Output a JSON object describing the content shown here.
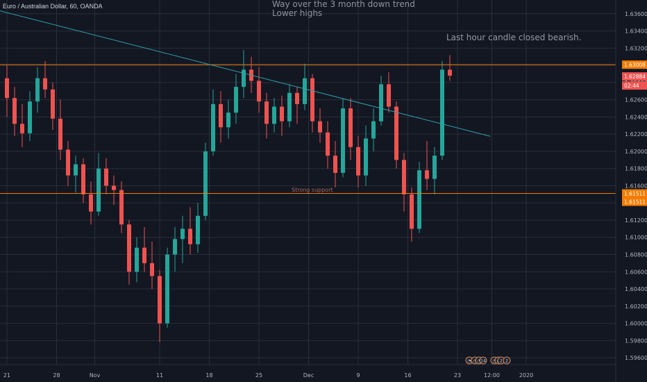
{
  "header": {
    "symbol": "Euro / Australian Dollar, 60, OANDA"
  },
  "annotations": {
    "trend_note_line1": "Way over the 3 month down trend",
    "trend_note_line2": "Lower highs",
    "candle_note": "Last hour candle closed bearish.",
    "support_label": "Strong support"
  },
  "price_tags": {
    "resistance": "1.63008",
    "current": "1.62884",
    "countdown": "02:44",
    "support_a": "1.61511",
    "support_b": "1.61511"
  },
  "event_badges": [
    {
      "glyph": "◔"
    },
    {
      "glyph": "◔"
    },
    {
      "glyph": "◔"
    },
    {
      "glyph": "14"
    },
    {
      "glyph": "◔"
    },
    {
      "glyph": "◔"
    },
    {
      "glyph": "2"
    },
    {
      "glyph": "2"
    }
  ],
  "colors": {
    "background": "#131722",
    "grid": "#2a2e39",
    "up": "#26a69a",
    "down": "#ef5350",
    "resistance": "#f57c00",
    "support": "#f57c00",
    "trendline": "#2ea1ad",
    "current_tag": "#ef5350",
    "support_tag": "#f57c00"
  },
  "chart_data": {
    "type": "candlestick",
    "title": "",
    "xlabel": "",
    "ylabel": "",
    "ylim": [
      1.5952,
      1.6376
    ],
    "grid": true,
    "y_ticks": [
      "1.59600",
      "1.59800",
      "1.60000",
      "1.60200",
      "1.60400",
      "1.60600",
      "1.60800",
      "1.61000",
      "1.61200",
      "1.61400",
      "1.61600",
      "1.61800",
      "1.62000",
      "1.62200",
      "1.62400",
      "1.62600",
      "1.62800",
      "1.63000",
      "1.63200",
      "1.63400",
      "1.63600"
    ],
    "x_ticks": [
      {
        "label": "21",
        "index": 0
      },
      {
        "label": "28",
        "index": 6.5
      },
      {
        "label": "Nov",
        "index": 11.5
      },
      {
        "label": "11",
        "index": 20
      },
      {
        "label": "18",
        "index": 26.5
      },
      {
        "label": "25",
        "index": 33
      },
      {
        "label": "Dec",
        "index": 39.5
      },
      {
        "label": "9",
        "index": 46
      },
      {
        "label": "16",
        "index": 52.5
      },
      {
        "label": "23",
        "index": 59
      },
      {
        "label": "12:00",
        "index": 63.5
      },
      {
        "label": "2020",
        "index": 68
      }
    ],
    "resistance": 1.63008,
    "support": 1.61511,
    "trendline": [
      [
        -10,
        1.6384
      ],
      [
        63.3,
        1.62175
      ]
    ],
    "candles": [
      {
        "t": "21",
        "o": 1.6285,
        "h": 1.63,
        "l": 1.624,
        "c": 1.6262
      },
      {
        "t": "21",
        "o": 1.6262,
        "h": 1.6275,
        "l": 1.6218,
        "c": 1.6232
      },
      {
        "t": "22",
        "o": 1.6232,
        "h": 1.6255,
        "l": 1.6205,
        "c": 1.6221
      },
      {
        "t": "22",
        "o": 1.6221,
        "h": 1.627,
        "l": 1.6212,
        "c": 1.6258
      },
      {
        "t": "23",
        "o": 1.6258,
        "h": 1.6298,
        "l": 1.6245,
        "c": 1.6285
      },
      {
        "t": "24",
        "o": 1.6285,
        "h": 1.6305,
        "l": 1.6262,
        "c": 1.6272
      },
      {
        "t": "25",
        "o": 1.6272,
        "h": 1.628,
        "l": 1.6225,
        "c": 1.6238
      },
      {
        "t": "28",
        "o": 1.6238,
        "h": 1.626,
        "l": 1.619,
        "c": 1.6202
      },
      {
        "t": "28",
        "o": 1.6202,
        "h": 1.6212,
        "l": 1.616,
        "c": 1.6172
      },
      {
        "t": "29",
        "o": 1.6172,
        "h": 1.6195,
        "l": 1.6152,
        "c": 1.6185
      },
      {
        "t": "30",
        "o": 1.6185,
        "h": 1.6192,
        "l": 1.614,
        "c": 1.615
      },
      {
        "t": "31",
        "o": 1.615,
        "h": 1.6165,
        "l": 1.6115,
        "c": 1.613
      },
      {
        "t": "1",
        "o": 1.613,
        "h": 1.6198,
        "l": 1.6125,
        "c": 1.618
      },
      {
        "t": "4",
        "o": 1.618,
        "h": 1.6192,
        "l": 1.615,
        "c": 1.616
      },
      {
        "t": "4",
        "o": 1.616,
        "h": 1.6172,
        "l": 1.6138,
        "c": 1.6155
      },
      {
        "t": "5",
        "o": 1.6155,
        "h": 1.6165,
        "l": 1.6105,
        "c": 1.6115
      },
      {
        "t": "6",
        "o": 1.6115,
        "h": 1.612,
        "l": 1.6045,
        "c": 1.606
      },
      {
        "t": "7",
        "o": 1.606,
        "h": 1.61,
        "l": 1.6048,
        "c": 1.6088
      },
      {
        "t": "7",
        "o": 1.6088,
        "h": 1.6112,
        "l": 1.606,
        "c": 1.607
      },
      {
        "t": "8",
        "o": 1.607,
        "h": 1.6095,
        "l": 1.604,
        "c": 1.6055
      },
      {
        "t": "8",
        "o": 1.6055,
        "h": 1.6062,
        "l": 1.5978,
        "c": 1.6
      },
      {
        "t": "11",
        "o": 1.6,
        "h": 1.6088,
        "l": 1.5995,
        "c": 1.608
      },
      {
        "t": "12",
        "o": 1.608,
        "h": 1.6112,
        "l": 1.606,
        "c": 1.6098
      },
      {
        "t": "13",
        "o": 1.6098,
        "h": 1.6125,
        "l": 1.607,
        "c": 1.611
      },
      {
        "t": "14",
        "o": 1.611,
        "h": 1.6135,
        "l": 1.608,
        "c": 1.6092
      },
      {
        "t": "15",
        "o": 1.6092,
        "h": 1.614,
        "l": 1.6082,
        "c": 1.6125
      },
      {
        "t": "15",
        "o": 1.6125,
        "h": 1.621,
        "l": 1.612,
        "c": 1.62
      },
      {
        "t": "18",
        "o": 1.62,
        "h": 1.6272,
        "l": 1.6195,
        "c": 1.6255
      },
      {
        "t": "18",
        "o": 1.6255,
        "h": 1.627,
        "l": 1.621,
        "c": 1.6228
      },
      {
        "t": "19",
        "o": 1.6228,
        "h": 1.626,
        "l": 1.6215,
        "c": 1.6245
      },
      {
        "t": "20",
        "o": 1.6245,
        "h": 1.629,
        "l": 1.6232,
        "c": 1.6275
      },
      {
        "t": "21",
        "o": 1.6275,
        "h": 1.6318,
        "l": 1.6262,
        "c": 1.6295
      },
      {
        "t": "22",
        "o": 1.6295,
        "h": 1.631,
        "l": 1.6268,
        "c": 1.6282
      },
      {
        "t": "22",
        "o": 1.6282,
        "h": 1.6298,
        "l": 1.6245,
        "c": 1.6258
      },
      {
        "t": "25",
        "o": 1.6258,
        "h": 1.6268,
        "l": 1.6215,
        "c": 1.6232
      },
      {
        "t": "25",
        "o": 1.6232,
        "h": 1.6262,
        "l": 1.6222,
        "c": 1.6252
      },
      {
        "t": "26",
        "o": 1.6252,
        "h": 1.6265,
        "l": 1.6218,
        "c": 1.6235
      },
      {
        "t": "27",
        "o": 1.6235,
        "h": 1.6278,
        "l": 1.6228,
        "c": 1.6268
      },
      {
        "t": "28",
        "o": 1.6268,
        "h": 1.6275,
        "l": 1.6232,
        "c": 1.6255
      },
      {
        "t": "29",
        "o": 1.6255,
        "h": 1.6302,
        "l": 1.6248,
        "c": 1.6285
      },
      {
        "t": "2",
        "o": 1.6285,
        "h": 1.629,
        "l": 1.6222,
        "c": 1.6235
      },
      {
        "t": "2",
        "o": 1.6235,
        "h": 1.625,
        "l": 1.621,
        "c": 1.6222
      },
      {
        "t": "3",
        "o": 1.6222,
        "h": 1.6235,
        "l": 1.618,
        "c": 1.6195
      },
      {
        "t": "4",
        "o": 1.6195,
        "h": 1.6212,
        "l": 1.6158,
        "c": 1.6175
      },
      {
        "t": "5",
        "o": 1.6175,
        "h": 1.6262,
        "l": 1.617,
        "c": 1.625
      },
      {
        "t": "6",
        "o": 1.625,
        "h": 1.6262,
        "l": 1.619,
        "c": 1.6205
      },
      {
        "t": "6",
        "o": 1.6205,
        "h": 1.6218,
        "l": 1.6158,
        "c": 1.6172
      },
      {
        "t": "9",
        "o": 1.6172,
        "h": 1.623,
        "l": 1.616,
        "c": 1.6215
      },
      {
        "t": "10",
        "o": 1.6215,
        "h": 1.625,
        "l": 1.62,
        "c": 1.6235
      },
      {
        "t": "10",
        "o": 1.6235,
        "h": 1.6288,
        "l": 1.623,
        "c": 1.6278
      },
      {
        "t": "11",
        "o": 1.6278,
        "h": 1.6292,
        "l": 1.6245,
        "c": 1.6252
      },
      {
        "t": "12",
        "o": 1.6252,
        "h": 1.6258,
        "l": 1.618,
        "c": 1.619
      },
      {
        "t": "13",
        "o": 1.619,
        "h": 1.6198,
        "l": 1.613,
        "c": 1.615
      },
      {
        "t": "13",
        "o": 1.615,
        "h": 1.6158,
        "l": 1.6095,
        "c": 1.611
      },
      {
        "t": "16",
        "o": 1.611,
        "h": 1.6188,
        "l": 1.6105,
        "c": 1.6178
      },
      {
        "t": "16",
        "o": 1.6178,
        "h": 1.6212,
        "l": 1.6155,
        "c": 1.6168
      },
      {
        "t": "17",
        "o": 1.6168,
        "h": 1.6205,
        "l": 1.615,
        "c": 1.6195
      },
      {
        "t": "17",
        "o": 1.6195,
        "h": 1.6305,
        "l": 1.619,
        "c": 1.6295
      },
      {
        "t": "17",
        "o": 1.6295,
        "h": 1.6312,
        "l": 1.6282,
        "c": 1.6288
      }
    ]
  }
}
